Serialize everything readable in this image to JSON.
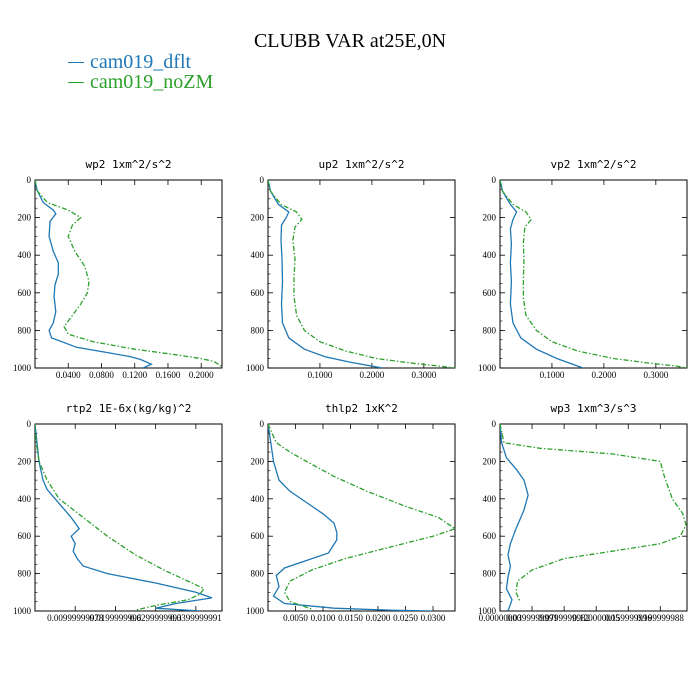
{
  "title": "CLUBB VAR at25E,0N",
  "legend": [
    {
      "label": "cam019_dflt",
      "color": "#1f77b4"
    },
    {
      "label": "cam019_noZM",
      "color": "#2ca02c"
    }
  ],
  "chart_data": [
    {
      "type": "line",
      "title": "wp2   1xm^2/s^2",
      "xlim": [
        0,
        0.225
      ],
      "ylim": [
        1000,
        0
      ],
      "xticks": [
        0.04,
        0.08,
        0.12,
        0.16,
        0.2
      ],
      "xtick_labels": [
        "0.0400",
        "0.0800",
        "0.1200",
        "0.1600",
        "0.2000"
      ],
      "yticks": [
        0,
        200,
        400,
        600,
        800,
        1000
      ],
      "ytick_labels": [
        "0",
        "200",
        "400",
        "600",
        "800",
        "1000"
      ],
      "series": [
        {
          "name": "cam019_dflt",
          "x": [
            0.0,
            0.002,
            0.01,
            0.022,
            0.025,
            0.018,
            0.017,
            0.022,
            0.028,
            0.028,
            0.024,
            0.023,
            0.025,
            0.022,
            0.017,
            0.02,
            0.05,
            0.09,
            0.115,
            0.127,
            0.14,
            0.13
          ],
          "y": [
            0,
            50,
            120,
            160,
            180,
            220,
            300,
            380,
            440,
            500,
            560,
            620,
            700,
            760,
            800,
            840,
            890,
            920,
            940,
            955,
            980,
            1000
          ]
        },
        {
          "name": "cam019_noZM",
          "x": [
            0.0,
            0.003,
            0.015,
            0.04,
            0.055,
            0.045,
            0.04,
            0.048,
            0.06,
            0.065,
            0.063,
            0.055,
            0.045,
            0.035,
            0.04,
            0.07,
            0.12,
            0.17,
            0.2,
            0.215,
            0.224
          ],
          "y": [
            0,
            60,
            120,
            160,
            200,
            240,
            300,
            380,
            460,
            540,
            600,
            660,
            720,
            780,
            820,
            860,
            900,
            930,
            950,
            965,
            990
          ]
        }
      ]
    },
    {
      "type": "line",
      "title": "up2   1xm^2/s^2",
      "xlim": [
        0,
        0.36
      ],
      "ylim": [
        1000,
        0
      ],
      "xticks": [
        0.1,
        0.2,
        0.3
      ],
      "xtick_labels": [
        "0.1000",
        "0.2000",
        "0.3000"
      ],
      "yticks": [
        0,
        200,
        400,
        600,
        800,
        1000
      ],
      "ytick_labels": [
        "0",
        "200",
        "400",
        "600",
        "800",
        "1000"
      ],
      "series": [
        {
          "name": "cam019_dflt",
          "x": [
            0.0,
            0.005,
            0.02,
            0.04,
            0.035,
            0.026,
            0.025,
            0.027,
            0.028,
            0.026,
            0.028,
            0.04,
            0.07,
            0.11,
            0.16,
            0.22
          ],
          "y": [
            0,
            60,
            130,
            170,
            200,
            240,
            320,
            420,
            540,
            660,
            760,
            840,
            900,
            940,
            970,
            1000
          ]
        },
        {
          "name": "cam019_noZM",
          "x": [
            0.0,
            0.005,
            0.025,
            0.055,
            0.065,
            0.052,
            0.048,
            0.052,
            0.05,
            0.05,
            0.055,
            0.07,
            0.1,
            0.15,
            0.21,
            0.28,
            0.33,
            0.36
          ],
          "y": [
            0,
            60,
            130,
            170,
            210,
            250,
            320,
            420,
            520,
            620,
            720,
            800,
            860,
            910,
            950,
            975,
            990,
            1000
          ]
        }
      ]
    },
    {
      "type": "line",
      "title": "vp2   1xm^2/s^2",
      "xlim": [
        0,
        0.36
      ],
      "ylim": [
        1000,
        0
      ],
      "xticks": [
        0.1,
        0.2,
        0.3
      ],
      "xtick_labels": [
        "0.1000",
        "0.2000",
        "0.3000"
      ],
      "yticks": [
        0,
        200,
        400,
        600,
        800,
        1000
      ],
      "ytick_labels": [
        "0",
        "200",
        "400",
        "600",
        "800",
        "1000"
      ],
      "series": [
        {
          "name": "cam019_dflt",
          "x": [
            0.0,
            0.005,
            0.02,
            0.032,
            0.025,
            0.02,
            0.022,
            0.02,
            0.022,
            0.02,
            0.025,
            0.04,
            0.07,
            0.11,
            0.16
          ],
          "y": [
            0,
            60,
            130,
            170,
            210,
            260,
            340,
            440,
            540,
            660,
            760,
            840,
            900,
            950,
            1000
          ]
        },
        {
          "name": "cam019_noZM",
          "x": [
            0.0,
            0.005,
            0.025,
            0.05,
            0.06,
            0.048,
            0.045,
            0.046,
            0.045,
            0.045,
            0.05,
            0.07,
            0.1,
            0.15,
            0.22,
            0.29,
            0.34,
            0.36
          ],
          "y": [
            0,
            60,
            130,
            170,
            210,
            250,
            330,
            430,
            530,
            630,
            720,
            800,
            860,
            910,
            950,
            975,
            990,
            1000
          ]
        }
      ]
    },
    {
      "type": "line",
      "title": "rtp2  1E-6x(kg/kg)^2",
      "xlim": [
        0,
        0.0465
      ],
      "ylim": [
        1000,
        0
      ],
      "xticks": [
        0.00999999978,
        0.0199999996,
        0.0299999993,
        0.0399999991
      ],
      "xtick_labels": [
        "0.00999999978",
        "0.0199999996",
        "0.0299999993",
        "0.0399999991"
      ],
      "yticks": [
        0,
        200,
        400,
        600,
        800,
        1000
      ],
      "ytick_labels": [
        "0",
        "200",
        "400",
        "600",
        "800",
        "1000"
      ],
      "series": [
        {
          "name": "cam019_dflt",
          "x": [
            0.0,
            0.0005,
            0.001,
            0.002,
            0.003,
            0.005,
            0.009,
            0.011,
            0.009,
            0.01,
            0.0095,
            0.0105,
            0.012,
            0.018,
            0.03,
            0.04,
            0.044,
            0.035,
            0.03,
            0.041
          ],
          "y": [
            0,
            100,
            200,
            300,
            350,
            400,
            500,
            560,
            600,
            640,
            680,
            720,
            760,
            800,
            850,
            900,
            930,
            960,
            985,
            1000
          ]
        },
        {
          "name": "cam019_noZM",
          "x": [
            0.0,
            0.0003,
            0.001,
            0.003,
            0.006,
            0.012,
            0.018,
            0.025,
            0.032,
            0.038,
            0.042,
            0.041,
            0.038,
            0.03,
            0.025
          ],
          "y": [
            0,
            100,
            200,
            300,
            400,
            500,
            600,
            700,
            780,
            840,
            880,
            910,
            940,
            970,
            995
          ]
        }
      ]
    },
    {
      "type": "line",
      "title": "thlp2  1xK^2",
      "xlim": [
        0,
        0.034
      ],
      "ylim": [
        1000,
        0
      ],
      "xticks": [
        0.005,
        0.01,
        0.015,
        0.02,
        0.025,
        0.03
      ],
      "xtick_labels": [
        "0.0050",
        "0.0100",
        "0.0150",
        "0.0200",
        "0.0250",
        "0.0300"
      ],
      "yticks": [
        0,
        200,
        400,
        600,
        800,
        1000
      ],
      "ytick_labels": [
        "0",
        "200",
        "400",
        "600",
        "800",
        "1000"
      ],
      "series": [
        {
          "name": "cam019_dflt",
          "x": [
            0.0,
            0.0005,
            0.001,
            0.002,
            0.004,
            0.007,
            0.01,
            0.012,
            0.0125,
            0.0125,
            0.011,
            0.007,
            0.003,
            0.0015,
            0.002,
            0.001,
            0.003,
            0.012,
            0.022,
            0.03
          ],
          "y": [
            0,
            100,
            200,
            300,
            360,
            420,
            480,
            530,
            580,
            620,
            690,
            730,
            770,
            810,
            870,
            920,
            960,
            985,
            995,
            1000
          ]
        },
        {
          "name": "cam019_noZM",
          "x": [
            0.0,
            0.0015,
            0.004,
            0.007,
            0.012,
            0.018,
            0.025,
            0.031,
            0.034,
            0.03,
            0.022,
            0.014,
            0.008,
            0.004,
            0.003,
            0.004,
            0.008
          ],
          "y": [
            0,
            100,
            150,
            200,
            280,
            360,
            440,
            500,
            560,
            600,
            660,
            720,
            780,
            840,
            900,
            950,
            990
          ]
        }
      ]
    },
    {
      "type": "line",
      "title": "wp3  1xm^3/s^3",
      "xlim": [
        0,
        0.2333
      ],
      "ylim": [
        1000,
        0
      ],
      "xticks": [
        0,
        0.0399999991,
        0.0799999982,
        0.12,
        0.159999996,
        0.199999988
      ],
      "xtick_labels": [
        "0.00000000",
        "0.0399999991",
        "0.0799999982",
        "0.120000005",
        "0.159999996",
        "0.199999988"
      ],
      "yticks": [
        0,
        200,
        400,
        600,
        800,
        1000
      ],
      "ytick_labels": [
        "0",
        "200",
        "400",
        "600",
        "800",
        "1000"
      ],
      "series": [
        {
          "name": "cam019_dflt",
          "x": [
            0.0,
            0.002,
            0.008,
            0.02,
            0.03,
            0.035,
            0.03,
            0.02,
            0.013,
            0.01,
            0.013,
            0.01,
            0.008,
            0.015,
            0.01
          ],
          "y": [
            0,
            100,
            180,
            240,
            300,
            380,
            460,
            560,
            640,
            700,
            760,
            820,
            880,
            940,
            1000
          ]
        },
        {
          "name": "cam019_noZM",
          "x": [
            0.0,
            0.005,
            0.05,
            0.14,
            0.2,
            0.205,
            0.215,
            0.228,
            0.232,
            0.225,
            0.2,
            0.14,
            0.08,
            0.04,
            0.022,
            0.02,
            0.025
          ],
          "y": [
            0,
            100,
            130,
            160,
            200,
            280,
            400,
            480,
            540,
            600,
            640,
            680,
            720,
            780,
            840,
            900,
            950
          ]
        }
      ]
    }
  ]
}
